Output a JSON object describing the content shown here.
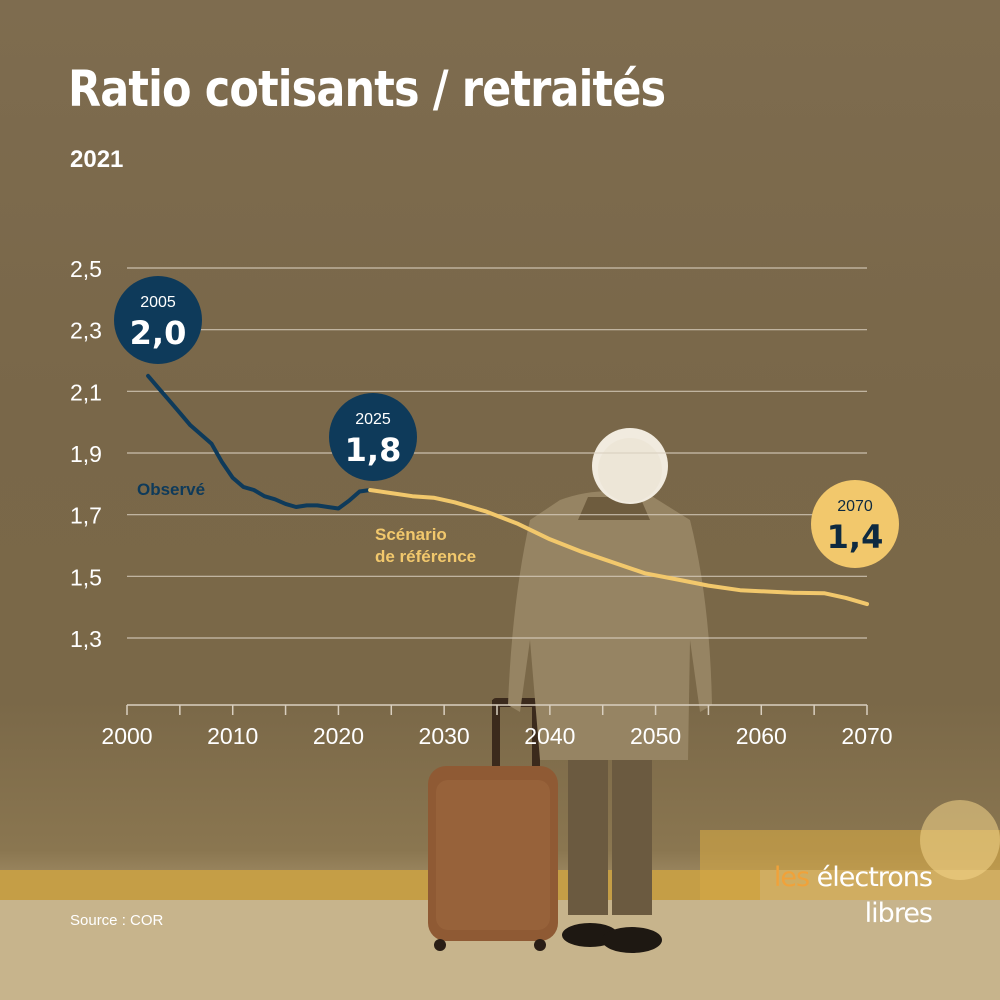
{
  "title": "Ratio cotisants / retraités",
  "subtitle": "2021",
  "source": "Source : COR",
  "logo": {
    "part1": "les",
    "part2": "électrons",
    "line2": "libres"
  },
  "colors": {
    "observed": "#0e3a5a",
    "scenario": "#f2c86c",
    "grid": "#d9cfbf",
    "text": "#ffffff"
  },
  "chart_data": {
    "type": "line",
    "x_ticks": [
      "2000",
      "2010",
      "2020",
      "2030",
      "2040",
      "2050",
      "2060",
      "2070"
    ],
    "y_ticks": [
      "2,5",
      "2,3",
      "2,1",
      "1,9",
      "1,7",
      "1,5",
      "1,3"
    ],
    "xlim": [
      2000,
      2070
    ],
    "ylim": [
      1.3,
      2.5
    ],
    "grid": true,
    "series": [
      {
        "name": "Observé",
        "color": "#0e3a5a",
        "points": [
          [
            2002,
            2.15
          ],
          [
            2003,
            2.11
          ],
          [
            2004,
            2.07
          ],
          [
            2005,
            2.03
          ],
          [
            2006,
            1.99
          ],
          [
            2007,
            1.96
          ],
          [
            2008,
            1.93
          ],
          [
            2009,
            1.87
          ],
          [
            2010,
            1.82
          ],
          [
            2011,
            1.79
          ],
          [
            2012,
            1.78
          ],
          [
            2013,
            1.76
          ],
          [
            2014,
            1.75
          ],
          [
            2015,
            1.735
          ],
          [
            2016,
            1.725
          ],
          [
            2017,
            1.73
          ],
          [
            2018,
            1.73
          ],
          [
            2019,
            1.725
          ],
          [
            2020,
            1.72
          ],
          [
            2021,
            1.745
          ],
          [
            2022,
            1.775
          ],
          [
            2023,
            1.78
          ]
        ]
      },
      {
        "name": "Scénario de référence",
        "color": "#f2c86c",
        "points": [
          [
            2023,
            1.78
          ],
          [
            2025,
            1.77
          ],
          [
            2027,
            1.76
          ],
          [
            2029,
            1.755
          ],
          [
            2031,
            1.74
          ],
          [
            2034,
            1.71
          ],
          [
            2037,
            1.67
          ],
          [
            2040,
            1.62
          ],
          [
            2043,
            1.58
          ],
          [
            2046,
            1.545
          ],
          [
            2049,
            1.51
          ],
          [
            2052,
            1.49
          ],
          [
            2055,
            1.47
          ],
          [
            2058,
            1.455
          ],
          [
            2061,
            1.45
          ],
          [
            2063,
            1.447
          ],
          [
            2066,
            1.445
          ],
          [
            2068,
            1.43
          ],
          [
            2070,
            1.41
          ]
        ]
      }
    ],
    "series_labels": [
      {
        "lines": [
          "Observé"
        ],
        "color": "#0e3a5a"
      },
      {
        "lines": [
          "Scénario",
          "de référence"
        ],
        "color": "#f2c86c"
      }
    ],
    "annotations": [
      {
        "year": "2005",
        "value": "2,0",
        "style": "dark"
      },
      {
        "year": "2025",
        "value": "1,8",
        "style": "dark"
      },
      {
        "year": "2070",
        "value": "1,4",
        "style": "light"
      }
    ]
  }
}
